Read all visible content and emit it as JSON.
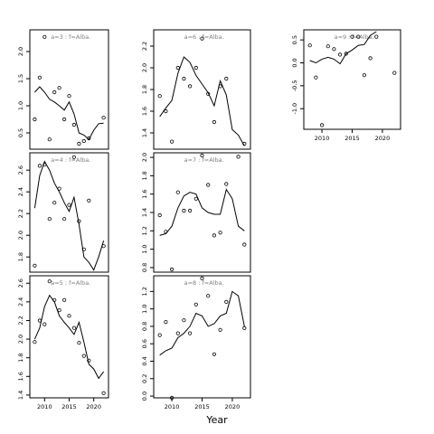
{
  "xlabel": "Year",
  "chart_data": [
    {
      "type": "line",
      "title": "a=3  :  f=Alba.",
      "xlim": [
        2007,
        2023
      ],
      "ylim": [
        0.2,
        2.4
      ],
      "yticks": [
        0.5,
        1.0,
        1.5,
        2.0
      ],
      "xticks": [],
      "series": [
        {
          "kind": "points",
          "x": [
            2008,
            2009,
            2010,
            2011,
            2012,
            2013,
            2014,
            2015,
            2016,
            2017,
            2018,
            2019,
            2022
          ],
          "y": [
            0.75,
            1.52,
            2.27,
            0.38,
            1.25,
            1.33,
            0.75,
            1.18,
            0.65,
            0.3,
            0.35,
            0.4,
            0.78
          ]
        },
        {
          "kind": "line",
          "x": [
            2008,
            2009,
            2010,
            2011,
            2012,
            2013,
            2014,
            2015,
            2016,
            2017,
            2018,
            2019,
            2020,
            2021,
            2022
          ],
          "y": [
            1.25,
            1.35,
            1.25,
            1.12,
            1.07,
            1.0,
            0.92,
            1.07,
            0.85,
            0.5,
            0.46,
            0.38,
            0.55,
            0.67,
            0.68
          ]
        }
      ]
    },
    {
      "type": "line",
      "title": "a=6  :  f=Alba.",
      "xlim": [
        2007,
        2023
      ],
      "ylim": [
        1.25,
        2.35
      ],
      "yticks": [
        1.4,
        1.6,
        1.8,
        2.0,
        2.2
      ],
      "xticks": [],
      "series": [
        {
          "kind": "points",
          "x": [
            2008,
            2009,
            2010,
            2011,
            2012,
            2013,
            2014,
            2015,
            2016,
            2017,
            2018,
            2019,
            2021,
            2022
          ],
          "y": [
            1.74,
            1.6,
            1.32,
            2.0,
            1.9,
            1.83,
            2.0,
            2.27,
            1.76,
            1.5,
            1.83,
            1.9,
            1.18,
            1.3
          ]
        },
        {
          "kind": "line",
          "x": [
            2008,
            2009,
            2010,
            2011,
            2012,
            2013,
            2014,
            2015,
            2016,
            2017,
            2018,
            2019,
            2020,
            2021,
            2022
          ],
          "y": [
            1.55,
            1.63,
            1.7,
            1.95,
            2.1,
            2.05,
            1.93,
            1.85,
            1.77,
            1.65,
            1.88,
            1.75,
            1.43,
            1.38,
            1.28
          ]
        }
      ]
    },
    {
      "type": "line",
      "title": "a=9  :  f=Alba.",
      "xlim": [
        2007,
        2023
      ],
      "ylim": [
        -1.45,
        0.72
      ],
      "yticks": [
        -1.0,
        -0.5,
        0.0,
        0.5
      ],
      "xticks": [
        2010,
        2015,
        2020
      ],
      "series": [
        {
          "kind": "points",
          "x": [
            2008,
            2009,
            2010,
            2011,
            2012,
            2013,
            2014,
            2015,
            2016,
            2017,
            2018,
            2019,
            2022
          ],
          "y": [
            0.38,
            -0.32,
            -1.36,
            0.36,
            0.3,
            0.18,
            0.2,
            0.57,
            0.57,
            -0.27,
            0.1,
            0.57,
            -0.22
          ]
        },
        {
          "kind": "line",
          "x": [
            2008,
            2009,
            2010,
            2011,
            2012,
            2013,
            2014,
            2015,
            2016,
            2017,
            2018,
            2019
          ],
          "y": [
            0.05,
            0.0,
            0.08,
            0.12,
            0.08,
            -0.02,
            0.2,
            0.28,
            0.38,
            0.4,
            0.6,
            0.68
          ]
        }
      ]
    },
    {
      "type": "line",
      "title": "a=4  :  f=Alba.",
      "xlim": [
        2007,
        2023
      ],
      "ylim": [
        1.66,
        2.76
      ],
      "yticks": [
        1.8,
        2.0,
        2.2,
        2.4,
        2.6
      ],
      "xticks": [],
      "series": [
        {
          "kind": "points",
          "x": [
            2008,
            2009,
            2010,
            2011,
            2012,
            2013,
            2014,
            2015,
            2016,
            2017,
            2018,
            2019,
            2022
          ],
          "y": [
            1.72,
            2.64,
            2.65,
            2.15,
            2.3,
            2.43,
            2.15,
            2.28,
            2.72,
            2.13,
            1.87,
            2.32,
            1.9
          ]
        },
        {
          "kind": "line",
          "x": [
            2008,
            2009,
            2010,
            2011,
            2012,
            2013,
            2014,
            2015,
            2016,
            2017,
            2018,
            2019,
            2020,
            2021,
            2022
          ],
          "y": [
            2.25,
            2.55,
            2.68,
            2.6,
            2.48,
            2.4,
            2.3,
            2.22,
            2.35,
            2.1,
            1.8,
            1.75,
            1.68,
            1.8,
            1.95
          ]
        }
      ]
    },
    {
      "type": "line",
      "title": "a=7  :  f=Alba.",
      "xlim": [
        2007,
        2023
      ],
      "ylim": [
        0.75,
        2.05
      ],
      "yticks": [
        0.8,
        1.0,
        1.2,
        1.4,
        1.6,
        1.8,
        2.0
      ],
      "xticks": [],
      "series": [
        {
          "kind": "points",
          "x": [
            2008,
            2009,
            2010,
            2011,
            2012,
            2013,
            2014,
            2015,
            2016,
            2017,
            2018,
            2019,
            2022
          ],
          "y": [
            1.37,
            1.19,
            0.78,
            1.62,
            1.42,
            1.42,
            1.55,
            2.02,
            1.7,
            1.15,
            1.18,
            1.71,
            1.05
          ]
        },
        {
          "kind": "line",
          "x": [
            2008,
            2009,
            2010,
            2011,
            2012,
            2013,
            2014,
            2015,
            2016,
            2017,
            2018,
            2019,
            2020,
            2021,
            2022
          ],
          "y": [
            1.15,
            1.17,
            1.25,
            1.45,
            1.58,
            1.62,
            1.6,
            1.45,
            1.4,
            1.38,
            1.38,
            1.65,
            1.55,
            1.25,
            1.2
          ]
        }
      ]
    },
    {
      "type": "line",
      "title": "a=5  :  f=Alba.",
      "xlim": [
        2007,
        2023
      ],
      "ylim": [
        1.37,
        2.68
      ],
      "yticks": [
        1.4,
        1.6,
        1.8,
        2.0,
        2.2,
        2.4,
        2.6
      ],
      "xticks": [
        2010,
        2015,
        2020
      ],
      "series": [
        {
          "kind": "points",
          "x": [
            2008,
            2009,
            2010,
            2011,
            2012,
            2013,
            2014,
            2015,
            2016,
            2017,
            2018,
            2019,
            2022
          ],
          "y": [
            1.97,
            2.2,
            2.16,
            2.62,
            2.42,
            2.31,
            2.42,
            2.25,
            2.12,
            1.96,
            1.82,
            1.77,
            1.42
          ]
        },
        {
          "kind": "line",
          "x": [
            2008,
            2009,
            2010,
            2011,
            2012,
            2013,
            2014,
            2015,
            2016,
            2017,
            2018,
            2019,
            2020,
            2021,
            2022
          ],
          "y": [
            2.0,
            2.12,
            2.35,
            2.47,
            2.4,
            2.25,
            2.18,
            2.12,
            2.05,
            2.18,
            1.97,
            1.73,
            1.68,
            1.58,
            1.65
          ]
        }
      ]
    },
    {
      "type": "line",
      "title": "a=8  :  f=Alba.",
      "xlim": [
        2007,
        2023
      ],
      "ylim": [
        -0.02,
        1.38
      ],
      "yticks": [
        0.0,
        0.2,
        0.4,
        0.6,
        0.8,
        1.0,
        1.2
      ],
      "xticks": [
        2010,
        2015,
        2020
      ],
      "series": [
        {
          "kind": "points",
          "x": [
            2008,
            2009,
            2010,
            2011,
            2012,
            2013,
            2014,
            2015,
            2016,
            2017,
            2018,
            2019,
            2022
          ],
          "y": [
            0.7,
            0.85,
            -0.02,
            0.72,
            0.87,
            0.72,
            1.05,
            1.35,
            1.15,
            0.48,
            0.76,
            1.08,
            0.78
          ]
        },
        {
          "kind": "line",
          "x": [
            2008,
            2009,
            2010,
            2011,
            2012,
            2013,
            2014,
            2015,
            2016,
            2017,
            2018,
            2019,
            2020,
            2021,
            2022
          ],
          "y": [
            0.47,
            0.52,
            0.55,
            0.67,
            0.72,
            0.8,
            0.95,
            0.92,
            0.8,
            0.83,
            0.92,
            0.95,
            1.2,
            1.15,
            0.8
          ]
        }
      ]
    }
  ]
}
